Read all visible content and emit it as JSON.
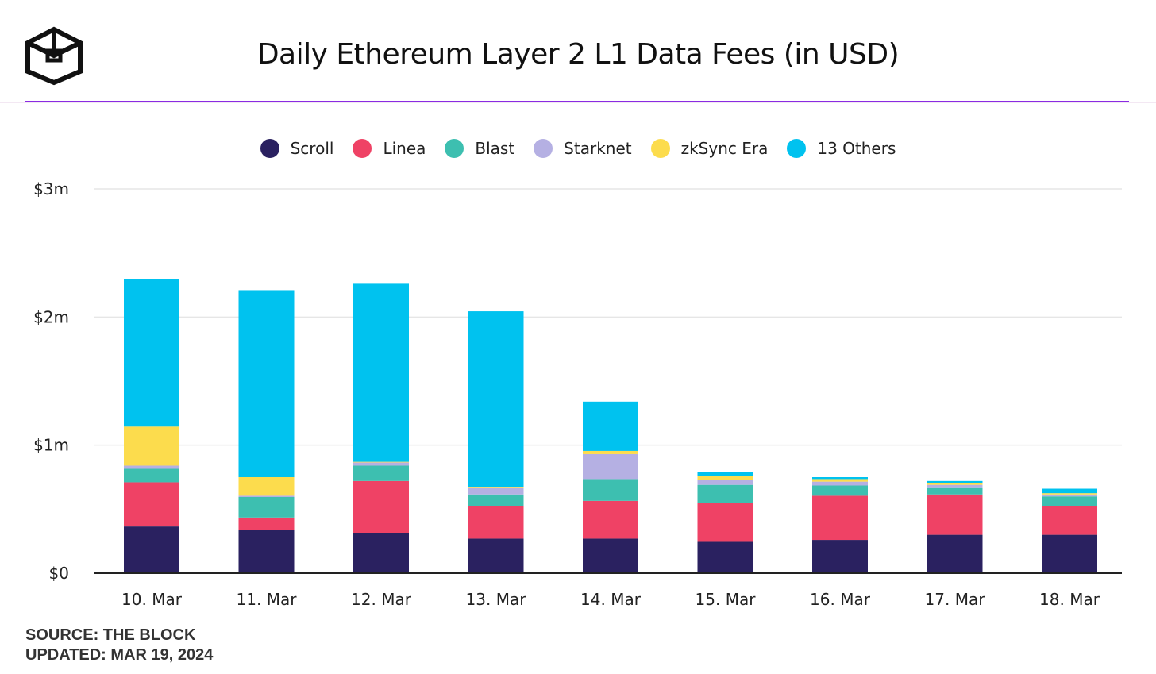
{
  "header": {
    "title": "Daily Ethereum Layer 2 L1 Data Fees (in USD)"
  },
  "footer": {
    "source": "SOURCE: THE BLOCK",
    "updated": "UPDATED: MAR 19, 2024"
  },
  "chart_data": {
    "type": "bar",
    "stacked": true,
    "title": "Daily Ethereum Layer 2 L1 Data Fees (in USD)",
    "xlabel": "",
    "ylabel": "",
    "ylim": [
      0,
      3000000
    ],
    "yticks": [
      {
        "value": 0,
        "label": "$0"
      },
      {
        "value": 1000000,
        "label": "$1m"
      },
      {
        "value": 2000000,
        "label": "$2m"
      },
      {
        "value": 3000000,
        "label": "$3m"
      }
    ],
    "grid": true,
    "legend_position": "top-center",
    "categories": [
      "10. Mar",
      "11. Mar",
      "12. Mar",
      "13. Mar",
      "14. Mar",
      "15. Mar",
      "16. Mar",
      "17. Mar",
      "18. Mar"
    ],
    "series": [
      {
        "name": "Scroll",
        "color": "#2a2160",
        "values": [
          365000,
          340000,
          310000,
          270000,
          270000,
          245000,
          260000,
          300000,
          300000
        ]
      },
      {
        "name": "Linea",
        "color": "#ef4265",
        "values": [
          345000,
          95000,
          410000,
          255000,
          295000,
          305000,
          345000,
          315000,
          225000
        ]
      },
      {
        "name": "Blast",
        "color": "#3dbfb0",
        "values": [
          105000,
          160000,
          120000,
          90000,
          170000,
          140000,
          80000,
          50000,
          75000
        ]
      },
      {
        "name": "Starknet",
        "color": "#b5b0e3",
        "values": [
          25000,
          10000,
          25000,
          50000,
          195000,
          40000,
          30000,
          25000,
          15000
        ]
      },
      {
        "name": "zkSync Era",
        "color": "#fcdc4d",
        "values": [
          305000,
          145000,
          5000,
          10000,
          25000,
          30000,
          20000,
          15000,
          10000
        ]
      },
      {
        "name": "13 Others",
        "color": "#00c2ef",
        "values": [
          1150000,
          1460000,
          1390000,
          1370000,
          385000,
          30000,
          15000,
          15000,
          35000
        ]
      }
    ]
  }
}
